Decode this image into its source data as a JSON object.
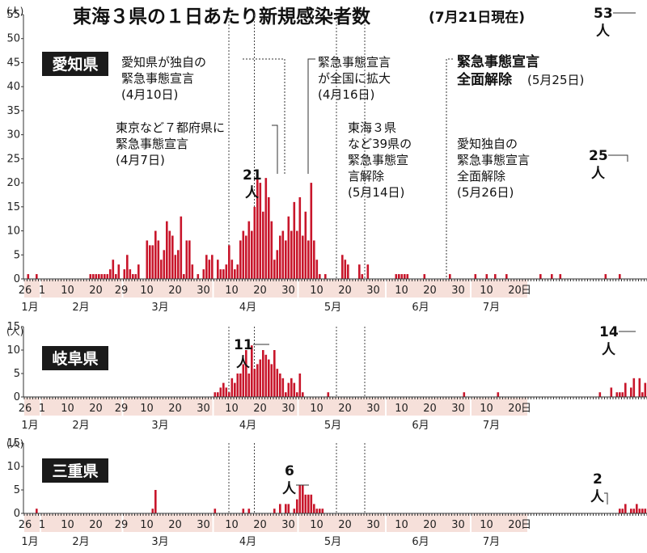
{
  "title": "東海３県の１日あたり新規感染者数",
  "subtitle": "(7月21日現在)",
  "unit": "(人)",
  "colors": {
    "bar": "#c8162b",
    "label_bg": "#1a1a1a",
    "band": "#f6e0da",
    "band_alt": "#ffffff"
  },
  "x_axis": {
    "day_ticks": [
      "26",
      "1",
      "10",
      "20",
      "29",
      "10",
      "20",
      "30",
      "10",
      "20",
      "30",
      "10",
      "20",
      "30",
      "10",
      "20",
      "30",
      "10",
      "20",
      "日"
    ],
    "months": [
      "1月",
      "2月",
      "3月",
      "4月",
      "5月",
      "6月",
      "7月"
    ]
  },
  "annotations": [
    {
      "lines": [
        "愛知県が独自の",
        "緊急事態宣言",
        "(4月10日)"
      ],
      "bold": false
    },
    {
      "lines": [
        "東京など７都府県に",
        "緊急事態宣言",
        "(4月7日)"
      ],
      "bold": false
    },
    {
      "lines": [
        "緊急事態宣言",
        "が全国に拡大",
        "(4月16日)"
      ],
      "bold": false
    },
    {
      "lines": [
        "東海３県",
        "など39県の",
        "緊急事態宣",
        "言解除",
        "(5月14日)"
      ],
      "bold": false
    },
    {
      "lines": [
        "緊急事態宣言",
        "全面解除"
      ],
      "bold": true,
      "tail": "(5月25日)"
    },
    {
      "lines": [
        "愛知独自の",
        "緊急事態宣言",
        "全面解除",
        "(5月26日)"
      ],
      "bold": false
    }
  ],
  "callouts": [
    {
      "num": "21",
      "unit": "人"
    },
    {
      "num": "25",
      "unit": "人"
    },
    {
      "num": "53",
      "unit": "人"
    },
    {
      "num": "11",
      "unit": "人"
    },
    {
      "num": "14",
      "unit": "人"
    },
    {
      "num": "6",
      "unit": "人"
    },
    {
      "num": "2",
      "unit": "人"
    }
  ],
  "chart_data": [
    {
      "type": "bar",
      "title": "愛知県",
      "x_start": "2020-01-26",
      "x_end": "2020-07-21",
      "ylim": [
        0,
        55
      ],
      "yticks": [
        0,
        5,
        10,
        15,
        20,
        25,
        30,
        35,
        40,
        45,
        50,
        55
      ],
      "values": [
        0,
        1,
        0,
        0,
        1,
        0,
        0,
        0,
        0,
        0,
        0,
        0,
        0,
        0,
        0,
        0,
        0,
        0,
        0,
        0,
        0,
        0,
        0,
        1,
        1,
        1,
        1,
        1,
        1,
        1,
        2,
        4,
        1,
        3,
        0,
        2,
        5,
        2,
        1,
        1,
        3,
        0,
        0,
        8,
        7,
        7,
        10,
        8,
        4,
        6,
        12,
        10,
        9,
        5,
        6,
        13,
        1,
        8,
        8,
        3,
        0,
        1,
        0,
        2,
        5,
        4,
        5,
        0,
        4,
        2,
        2,
        3,
        7,
        4,
        2,
        3,
        8,
        10,
        9,
        12,
        10,
        15,
        21,
        20,
        14,
        21,
        17,
        12,
        4,
        6,
        9,
        10,
        8,
        13,
        10,
        16,
        10,
        17,
        9,
        14,
        8,
        20,
        8,
        4,
        1,
        0,
        1,
        0,
        0,
        0,
        0,
        0,
        5,
        4,
        3,
        0,
        0,
        0,
        3,
        1,
        0,
        3,
        0,
        0,
        0,
        0,
        0,
        0,
        0,
        0,
        0,
        1,
        1,
        1,
        1,
        1,
        0,
        0,
        0,
        0,
        0,
        1,
        0,
        0,
        0,
        0,
        0,
        0,
        0,
        0,
        1,
        0,
        0,
        0,
        0,
        0,
        0,
        0,
        0,
        1,
        0,
        0,
        0,
        1,
        0,
        0,
        1,
        0,
        0,
        0,
        1,
        0,
        0,
        0,
        0,
        0,
        0,
        0,
        0,
        0,
        0,
        0,
        1,
        0,
        0,
        0,
        1,
        0,
        0,
        1,
        0,
        0,
        0,
        0,
        0,
        0,
        0,
        0,
        0,
        0,
        0,
        0,
        0,
        0,
        0,
        1,
        0,
        0,
        0,
        0,
        1,
        0,
        0,
        0,
        0,
        0,
        0,
        0,
        0,
        0,
        1,
        0,
        0,
        0,
        0,
        0,
        0,
        1,
        1,
        0,
        1,
        0,
        5,
        16,
        21,
        20,
        25,
        21,
        21,
        53
      ]
    },
    {
      "type": "bar",
      "title": "岐阜県",
      "x_start": "2020-01-26",
      "x_end": "2020-07-21",
      "ylim": [
        0,
        15
      ],
      "yticks": [
        0,
        5,
        10,
        15
      ],
      "values": [
        0,
        0,
        0,
        0,
        0,
        0,
        0,
        0,
        0,
        0,
        0,
        0,
        0,
        0,
        0,
        0,
        0,
        0,
        0,
        0,
        0,
        0,
        0,
        0,
        0,
        0,
        0,
        0,
        0,
        0,
        0,
        0,
        0,
        0,
        0,
        0,
        0,
        0,
        0,
        0,
        0,
        0,
        0,
        0,
        0,
        0,
        0,
        0,
        0,
        0,
        0,
        0,
        0,
        0,
        0,
        0,
        0,
        0,
        0,
        0,
        0,
        0,
        0,
        0,
        0,
        0,
        0,
        1,
        1,
        2,
        3,
        2,
        1,
        4,
        3,
        5,
        5,
        7,
        10,
        5,
        11,
        6,
        7,
        8,
        10,
        9,
        8,
        7,
        10,
        6,
        5,
        4,
        1,
        3,
        4,
        3,
        1,
        5,
        1,
        0,
        0,
        0,
        0,
        0,
        0,
        0,
        0,
        1,
        0,
        0,
        0,
        0,
        0,
        0,
        0,
        0,
        0,
        0,
        0,
        0,
        0,
        0,
        0,
        0,
        0,
        0,
        0,
        0,
        0,
        0,
        0,
        0,
        0,
        0,
        0,
        0,
        0,
        0,
        0,
        0,
        0,
        0,
        0,
        0,
        0,
        0,
        0,
        0,
        0,
        0,
        0,
        0,
        0,
        0,
        0,
        1,
        0,
        0,
        0,
        0,
        0,
        0,
        0,
        0,
        0,
        0,
        0,
        1,
        0,
        0,
        0,
        0,
        0,
        0,
        0,
        0,
        0,
        0,
        0,
        0,
        0,
        0,
        0,
        0,
        0,
        0,
        0,
        0,
        0,
        0,
        0,
        0,
        0,
        0,
        0,
        0,
        0,
        0,
        0,
        0,
        0,
        0,
        0,
        1,
        0,
        0,
        0,
        2,
        0,
        1,
        1,
        1,
        3,
        0,
        2,
        4,
        0,
        4,
        1,
        3,
        14
      ]
    },
    {
      "type": "bar",
      "title": "三重県",
      "x_start": "2020-01-26",
      "x_end": "2020-07-21",
      "ylim": [
        0,
        15
      ],
      "yticks": [
        0,
        5,
        10,
        15
      ],
      "values": [
        0,
        0,
        0,
        0,
        1,
        0,
        0,
        0,
        0,
        0,
        0,
        0,
        0,
        0,
        0,
        0,
        0,
        0,
        0,
        0,
        0,
        0,
        0,
        0,
        0,
        0,
        0,
        0,
        0,
        0,
        0,
        0,
        0,
        0,
        0,
        0,
        0,
        0,
        0,
        0,
        0,
        0,
        0,
        0,
        0,
        1,
        5,
        0,
        0,
        0,
        0,
        0,
        0,
        0,
        0,
        0,
        0,
        0,
        0,
        0,
        0,
        0,
        0,
        0,
        0,
        0,
        0,
        1,
        0,
        0,
        0,
        0,
        0,
        0,
        0,
        0,
        0,
        1,
        0,
        1,
        0,
        0,
        0,
        0,
        0,
        0,
        0,
        0,
        1,
        0,
        2,
        0,
        2,
        2,
        0,
        1,
        3,
        6,
        6,
        4,
        4,
        4,
        2,
        1,
        1,
        1,
        0,
        0,
        0,
        0,
        0,
        0,
        0,
        0,
        0,
        0,
        0,
        0,
        0,
        0,
        0,
        0,
        0,
        0,
        0,
        0,
        0,
        0,
        0,
        0,
        0,
        0,
        0,
        0,
        0,
        0,
        0,
        0,
        0,
        0,
        0,
        0,
        0,
        0,
        0,
        0,
        0,
        0,
        0,
        0,
        0,
        0,
        0,
        0,
        0,
        0,
        0,
        0,
        0,
        0,
        0,
        0,
        0,
        0,
        0,
        0,
        0,
        0,
        0,
        0,
        0,
        0,
        0,
        0,
        0,
        0,
        0,
        0,
        0,
        0,
        0,
        0,
        0,
        0,
        0,
        0,
        0,
        0,
        0,
        0,
        0,
        0,
        0,
        0,
        0,
        0,
        0,
        0,
        0,
        0,
        0,
        0,
        0,
        0,
        0,
        0,
        0,
        0,
        0,
        0,
        1,
        1,
        2,
        0,
        1,
        1,
        2,
        1,
        1,
        1,
        1,
        0,
        0,
        0
      ]
    }
  ]
}
